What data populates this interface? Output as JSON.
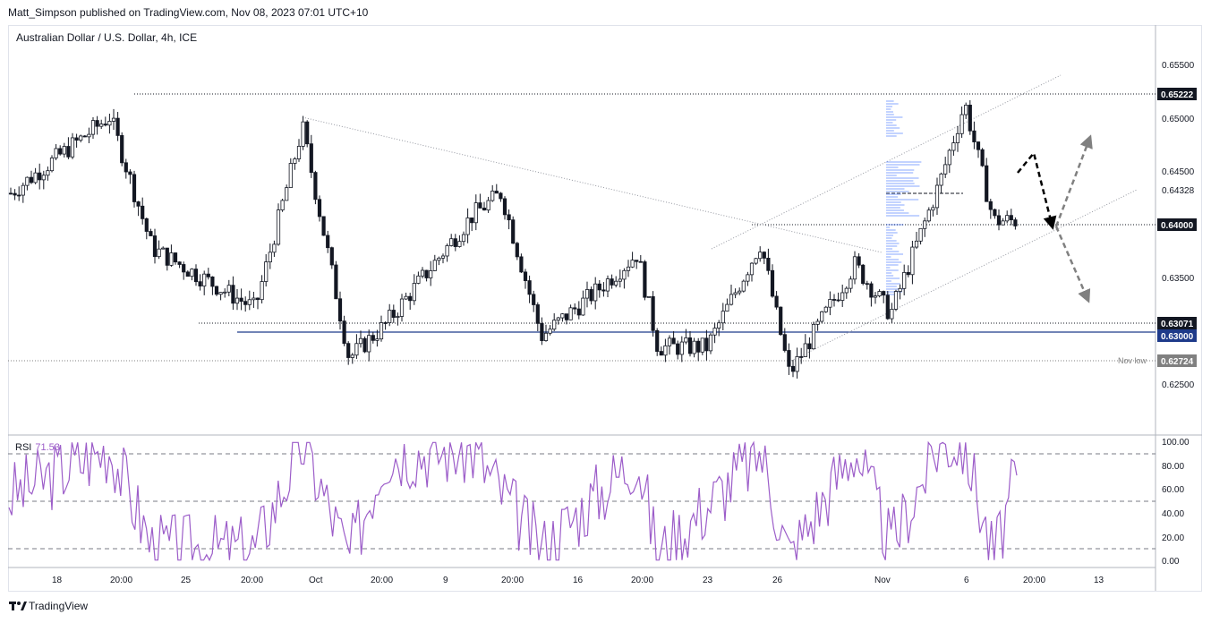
{
  "header": {
    "publish_line": "Matt_Simpson published on TradingView.com, Nov 08, 2023 07:01 UTC+10"
  },
  "chart": {
    "title": "Australian Dollar / U.S. Dollar, 4h, ICE"
  },
  "price_axis": {
    "ticks": [
      "0.65500",
      "0.65000",
      "0.64500",
      "0.64328",
      "0.64000",
      "0.63500",
      "0.63071",
      "0.63000",
      "0.62724",
      "0.62500"
    ]
  },
  "levels": [
    {
      "name": "high",
      "label": "0.65222",
      "value": 0.65222
    },
    {
      "name": "r1",
      "label": "0.64000",
      "value": 0.64
    },
    {
      "name": "s1",
      "label": "0.63071",
      "value": 0.63071
    },
    {
      "name": "s2",
      "label": "0.63000",
      "value": 0.63
    },
    {
      "name": "nov-low",
      "label": "0.62724",
      "value": 0.62724,
      "note": "Nov low"
    }
  ],
  "time_axis": {
    "labels": [
      "18",
      "20:00",
      "25",
      "20:00",
      "Oct",
      "20:00",
      "9",
      "20:00",
      "16",
      "20:00",
      "23",
      "26",
      "Nov",
      "6",
      "20:00",
      "13"
    ]
  },
  "rsi": {
    "label": "RSI",
    "value": "71.53",
    "ticks": [
      "100.00",
      "80.00",
      "60.00",
      "40.00",
      "20.00",
      "0.00"
    ]
  },
  "footer": {
    "brand": "TradingView"
  },
  "colors": {
    "up": "#131722",
    "rsi": "#9c5dc9",
    "level_blue": "#1e3a8a",
    "grid": "#e0e3eb"
  },
  "chart_data": {
    "type": "candlestick",
    "title": "Australian Dollar / U.S. Dollar, 4h, ICE",
    "symbol": "AUDUSD",
    "timeframe": "4h",
    "ylim": [
      0.622,
      0.6593
    ],
    "key_levels": [
      0.65222,
      0.64328,
      0.64,
      0.63071,
      0.63,
      0.62724
    ],
    "annotations": [
      "Nov low"
    ],
    "series": [
      {
        "type": "line",
        "name": "",
        "anchor_points": [
          {
            "x": "Sep 15",
            "y": 0.644
          },
          {
            "x": "Sep 19",
            "y": 0.651
          },
          {
            "x": "Sep 21",
            "y": 0.639
          },
          {
            "x": "Sep 27",
            "y": 0.6335
          },
          {
            "x": "Sep 29",
            "y": 0.65
          },
          {
            "x": "Oct 3",
            "y": 0.629
          },
          {
            "x": "Oct 5",
            "y": 0.632
          },
          {
            "x": "Oct 10",
            "y": 0.642
          },
          {
            "x": "Oct 12",
            "y": 0.644
          },
          {
            "x": "Oct 13",
            "y": 0.631
          },
          {
            "x": "Oct 17",
            "y": 0.635
          },
          {
            "x": "Oct 19",
            "y": 0.6385
          },
          {
            "x": "Oct 20",
            "y": 0.63
          },
          {
            "x": "Oct 23",
            "y": 0.63
          },
          {
            "x": "Oct 25",
            "y": 0.6395
          },
          {
            "x": "Oct 26",
            "y": 0.6275
          },
          {
            "x": "Oct 30",
            "y": 0.6375
          },
          {
            "x": "Nov 1",
            "y": 0.633
          },
          {
            "x": "Nov 3",
            "y": 0.645
          },
          {
            "x": "Nov 6",
            "y": 0.6522
          },
          {
            "x": "Nov 7",
            "y": 0.6415
          }
        ]
      }
    ],
    "rsi_anchor_points": [
      {
        "x": "Sep 15",
        "y": 55
      },
      {
        "x": "Sep 19",
        "y": 95
      },
      {
        "x": "Sep 21",
        "y": 12
      },
      {
        "x": "Sep 27",
        "y": 10
      },
      {
        "x": "Sep 29",
        "y": 99
      },
      {
        "x": "Oct 3",
        "y": 3
      },
      {
        "x": "Oct 5",
        "y": 90
      },
      {
        "x": "Oct 10",
        "y": 92
      },
      {
        "x": "Oct 13",
        "y": 10
      },
      {
        "x": "Oct 19",
        "y": 88
      },
      {
        "x": "Oct 20",
        "y": 5
      },
      {
        "x": "Oct 25",
        "y": 92
      },
      {
        "x": "Oct 26",
        "y": 3
      },
      {
        "x": "Oct 30",
        "y": 95
      },
      {
        "x": "Nov 1",
        "y": 12
      },
      {
        "x": "Nov 3",
        "y": 99
      },
      {
        "x": "Nov 6",
        "y": 98
      },
      {
        "x": "Nov 7",
        "y": 1
      },
      {
        "x": "Nov 7 12:00",
        "y": 71.53
      }
    ],
    "rsi_guides": [
      90,
      50,
      10
    ]
  }
}
